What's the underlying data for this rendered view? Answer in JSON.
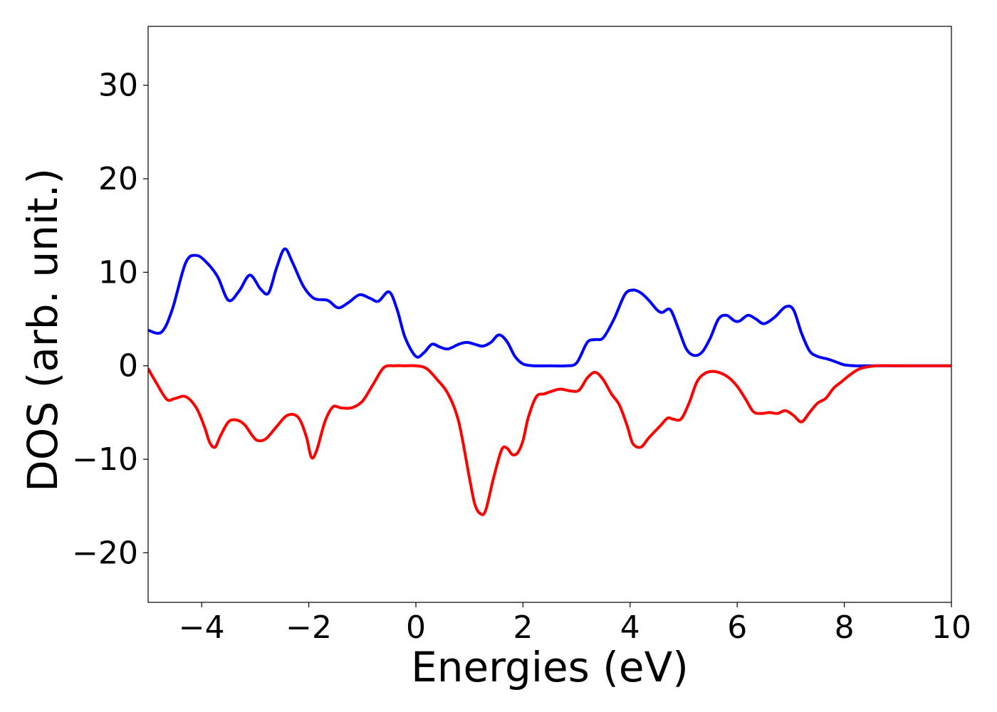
{
  "chart_data": {
    "type": "line",
    "title": "",
    "xlabel": "Energies (eV)",
    "ylabel": "DOS (arb. unit.)",
    "xlim": [
      -5,
      10
    ],
    "ylim": [
      -25.3,
      36.3
    ],
    "xticks": [
      -4,
      -2,
      0,
      2,
      4,
      6,
      8,
      10
    ],
    "xtick_labels": [
      "−4",
      "−2",
      "0",
      "2",
      "4",
      "6",
      "8",
      "10"
    ],
    "yticks": [
      -20,
      -10,
      0,
      10,
      20,
      30
    ],
    "ytick_labels": [
      "−20",
      "−10",
      "0",
      "10",
      "20",
      "30"
    ],
    "grid": false,
    "legend": "none",
    "series": [
      {
        "color": "#0000ff",
        "x": [
          -5.0,
          -4.75,
          -4.55,
          -4.3,
          -4.1,
          -3.9,
          -3.7,
          -3.5,
          -3.3,
          -3.1,
          -2.9,
          -2.75,
          -2.6,
          -2.45,
          -2.3,
          -2.1,
          -1.9,
          -1.65,
          -1.45,
          -1.25,
          -1.05,
          -0.85,
          -0.7,
          -0.5,
          -0.35,
          -0.2,
          0.0,
          0.15,
          0.3,
          0.45,
          0.6,
          0.8,
          0.95,
          1.1,
          1.25,
          1.4,
          1.55,
          1.7,
          1.85,
          2.0,
          2.2,
          2.5,
          2.8,
          3.0,
          3.2,
          3.35,
          3.5,
          3.7,
          3.9,
          4.05,
          4.2,
          4.35,
          4.5,
          4.6,
          4.75,
          4.9,
          5.05,
          5.2,
          5.35,
          5.5,
          5.65,
          5.8,
          5.95,
          6.05,
          6.2,
          6.35,
          6.5,
          6.7,
          6.9,
          7.05,
          7.2,
          7.35,
          7.5,
          7.7,
          7.85,
          8.0,
          8.2,
          8.5,
          9.0,
          10.0
        ],
        "y": [
          3.8,
          3.6,
          6.0,
          11.0,
          11.8,
          11.0,
          9.5,
          7.0,
          8.0,
          9.7,
          8.2,
          7.8,
          10.5,
          12.5,
          11.0,
          8.5,
          7.2,
          7.0,
          6.2,
          6.8,
          7.6,
          7.2,
          6.9,
          7.9,
          6.0,
          3.0,
          1.0,
          1.4,
          2.3,
          2.0,
          1.8,
          2.3,
          2.5,
          2.3,
          2.1,
          2.5,
          3.3,
          2.6,
          1.0,
          0.2,
          0.0,
          0.0,
          0.0,
          0.3,
          2.5,
          2.8,
          3.0,
          5.0,
          7.6,
          8.1,
          7.8,
          7.0,
          6.0,
          5.7,
          6.0,
          4.0,
          1.8,
          1.1,
          1.5,
          3.0,
          5.0,
          5.4,
          4.8,
          4.8,
          5.4,
          5.0,
          4.5,
          5.2,
          6.3,
          6.0,
          3.5,
          1.6,
          1.0,
          0.7,
          0.4,
          0.1,
          0.0,
          0.0,
          0.0,
          0.0
        ]
      },
      {
        "color": "#ff0000",
        "x": [
          -5.0,
          -4.85,
          -4.65,
          -4.5,
          -4.3,
          -4.1,
          -3.95,
          -3.85,
          -3.75,
          -3.65,
          -3.5,
          -3.35,
          -3.2,
          -3.05,
          -2.95,
          -2.8,
          -2.6,
          -2.4,
          -2.2,
          -2.05,
          -1.95,
          -1.85,
          -1.7,
          -1.55,
          -1.4,
          -1.2,
          -1.0,
          -0.8,
          -0.6,
          -0.4,
          -0.2,
          0.0,
          0.2,
          0.4,
          0.6,
          0.8,
          1.0,
          1.1,
          1.2,
          1.3,
          1.45,
          1.6,
          1.7,
          1.8,
          1.9,
          2.0,
          2.1,
          2.25,
          2.4,
          2.55,
          2.7,
          2.9,
          3.05,
          3.2,
          3.35,
          3.5,
          3.65,
          3.8,
          3.95,
          4.05,
          4.2,
          4.35,
          4.55,
          4.7,
          4.8,
          4.95,
          5.1,
          5.25,
          5.4,
          5.55,
          5.7,
          5.85,
          6.0,
          6.15,
          6.3,
          6.45,
          6.6,
          6.75,
          6.9,
          7.05,
          7.2,
          7.35,
          7.5,
          7.65,
          7.8,
          7.95,
          8.1,
          8.3,
          8.6,
          9.0,
          10.0
        ],
        "y": [
          -0.3,
          -1.8,
          -3.6,
          -3.5,
          -3.3,
          -4.5,
          -6.5,
          -8.2,
          -8.7,
          -7.5,
          -6.0,
          -5.8,
          -6.3,
          -7.5,
          -8.0,
          -7.8,
          -6.5,
          -5.3,
          -5.5,
          -7.5,
          -9.8,
          -9.0,
          -6.0,
          -4.4,
          -4.5,
          -4.5,
          -3.8,
          -2.0,
          -0.2,
          0.0,
          0.0,
          0.0,
          -0.3,
          -1.5,
          -3.0,
          -6.0,
          -12.0,
          -14.8,
          -15.8,
          -15.5,
          -12.0,
          -9.0,
          -8.8,
          -9.5,
          -9.3,
          -8.0,
          -5.5,
          -3.3,
          -3.0,
          -2.7,
          -2.5,
          -2.7,
          -2.6,
          -1.3,
          -0.7,
          -1.5,
          -3.0,
          -4.2,
          -6.5,
          -8.3,
          -8.7,
          -7.7,
          -6.5,
          -5.6,
          -5.7,
          -5.7,
          -4.0,
          -1.7,
          -0.8,
          -0.6,
          -0.8,
          -1.3,
          -2.2,
          -3.5,
          -4.9,
          -5.1,
          -5.0,
          -5.1,
          -4.8,
          -5.3,
          -6.0,
          -5.0,
          -4.0,
          -3.5,
          -2.4,
          -1.7,
          -1.0,
          -0.3,
          0.0,
          0.0,
          0.0
        ]
      }
    ]
  }
}
